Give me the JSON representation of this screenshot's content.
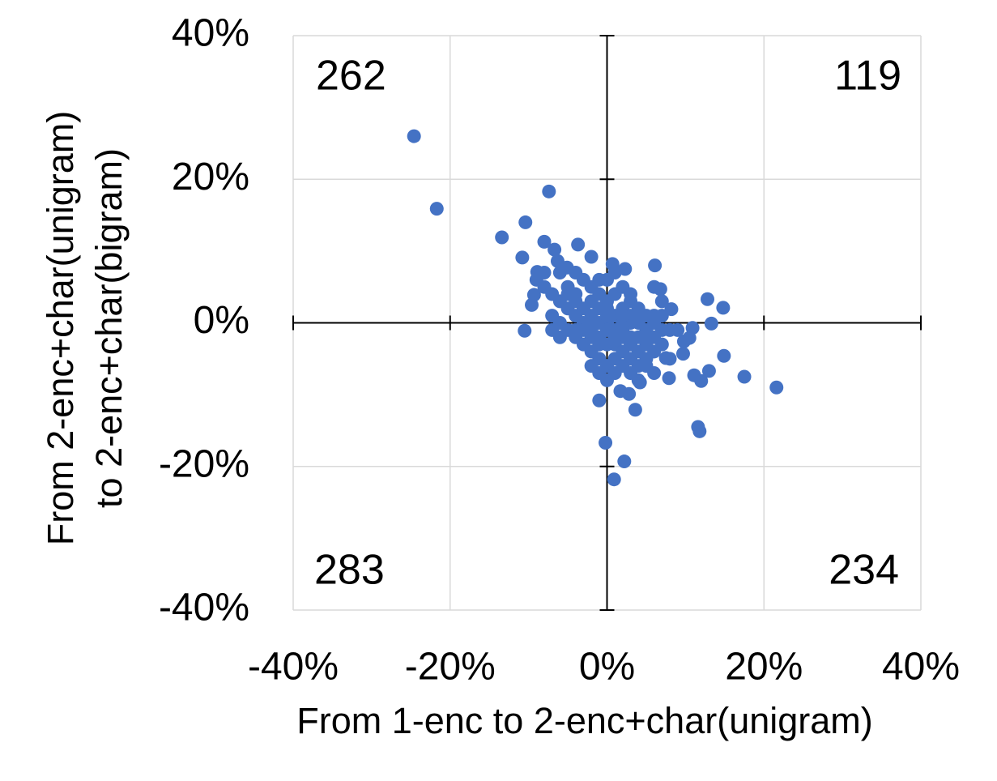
{
  "chart_data": {
    "type": "scatter",
    "xlabel": "From 1-enc to 2-enc+char(unigram)",
    "ylabel": [
      "From 2-enc+char(unigram)",
      "to 2-enc+char(bigram)"
    ],
    "color": "#4472c4",
    "grid": true,
    "xlim": [
      -40,
      40
    ],
    "ylim": [
      -40,
      40
    ],
    "xticks": [
      {
        "value": -40,
        "label": "-40%"
      },
      {
        "value": -20,
        "label": "-20%"
      },
      {
        "value": 0,
        "label": "0%"
      },
      {
        "value": 20,
        "label": "20%"
      },
      {
        "value": 40,
        "label": "40%"
      }
    ],
    "yticks": [
      {
        "value": -40,
        "label": "-40%"
      },
      {
        "value": -20,
        "label": "-20%"
      },
      {
        "value": 0,
        "label": "0%"
      },
      {
        "value": 20,
        "label": "20%"
      },
      {
        "value": 40,
        "label": "40%"
      }
    ],
    "annotations": [
      {
        "text": "262",
        "corner": "top-left"
      },
      {
        "text": "119",
        "corner": "top-right"
      },
      {
        "text": "283",
        "corner": "bottom-left"
      },
      {
        "text": "234",
        "corner": "bottom-right"
      }
    ],
    "x": [
      -24.6,
      -21.7,
      -7.4,
      -13.4,
      -10.4,
      -10.8,
      -8.0,
      -3.7,
      -2.0,
      0.7,
      2.3,
      6.1,
      12.8,
      14.8,
      13.3,
      14.9,
      17.5,
      21.6,
      13.0,
      11.6,
      11.8,
      11.1,
      12.0,
      10.5,
      -0.2,
      2.2,
      0.9,
      3.6,
      -1.0,
      1.7,
      2.8,
      -10.5,
      -9.6,
      -9.3,
      -6.7,
      -8.9,
      -5.1,
      -6.3,
      6.8,
      8.2,
      7.9,
      4.2,
      9.7,
      7.5,
      10.9,
      9.8,
      -5,
      -4,
      -3,
      -2,
      -1,
      0,
      1,
      2,
      3,
      4,
      5,
      6,
      7,
      -6,
      -5,
      -4,
      -3,
      -2,
      -1,
      0,
      1,
      2,
      3,
      4,
      5,
      6,
      7,
      -6,
      -5,
      -4,
      -3,
      -2,
      -1,
      0,
      1,
      2,
      3,
      4,
      5,
      -3,
      -2,
      -1,
      0,
      1,
      2,
      3,
      4,
      5,
      -4,
      -2,
      0,
      2,
      4,
      6,
      -1,
      1,
      3,
      -3,
      -1,
      1,
      3,
      5,
      -2,
      0,
      2,
      4,
      -4,
      -2,
      0,
      2,
      6,
      7,
      8,
      -5,
      -7,
      -7,
      -8,
      -9,
      -8,
      -6,
      -4,
      0,
      2,
      3,
      1,
      -1,
      -2,
      6,
      5,
      9,
      7,
      6,
      1,
      -1,
      3,
      -6,
      -7,
      8,
      4,
      0
    ],
    "y": [
      26.0,
      15.9,
      18.3,
      11.9,
      14.0,
      9.1,
      11.3,
      10.9,
      9.2,
      8.2,
      7.5,
      8.0,
      3.3,
      2.1,
      -0.1,
      -4.6,
      -7.5,
      -9.0,
      -6.7,
      -14.5,
      -15.1,
      -7.3,
      -8.1,
      -2.1,
      -16.7,
      -19.3,
      -21.8,
      -12.1,
      -10.8,
      -9.5,
      -9.9,
      -1.1,
      2.5,
      3.9,
      10.2,
      7.1,
      7.7,
      8.6,
      4.7,
      1.9,
      -7.7,
      -8.3,
      -4.3,
      -4.9,
      -0.7,
      -2.6,
      5,
      4,
      6,
      5,
      4,
      3,
      4,
      5,
      3,
      2,
      1,
      0,
      -1,
      3,
      2,
      1,
      2,
      1,
      0,
      0,
      -1,
      -2,
      -3,
      -4,
      -3,
      -4,
      -3,
      0,
      -1,
      -2,
      -3,
      -4,
      -5,
      -6,
      -5,
      -6,
      -5,
      -6,
      -5,
      0,
      -1,
      -2,
      -3,
      -2,
      -1,
      0,
      1,
      -1,
      3,
      3,
      2,
      2,
      -2,
      -2,
      2,
      1,
      1,
      -1,
      -3,
      -3,
      -2,
      -2,
      -2,
      -1,
      0,
      0,
      -1,
      0,
      1,
      1,
      1,
      1,
      -1,
      4,
      1,
      4,
      5,
      6,
      7,
      7,
      7,
      6,
      -4,
      -7,
      -7,
      -7,
      -6,
      -7,
      -6,
      -1,
      3,
      5,
      7,
      6,
      4,
      -2,
      -1,
      -5,
      -8,
      -8
    ]
  }
}
